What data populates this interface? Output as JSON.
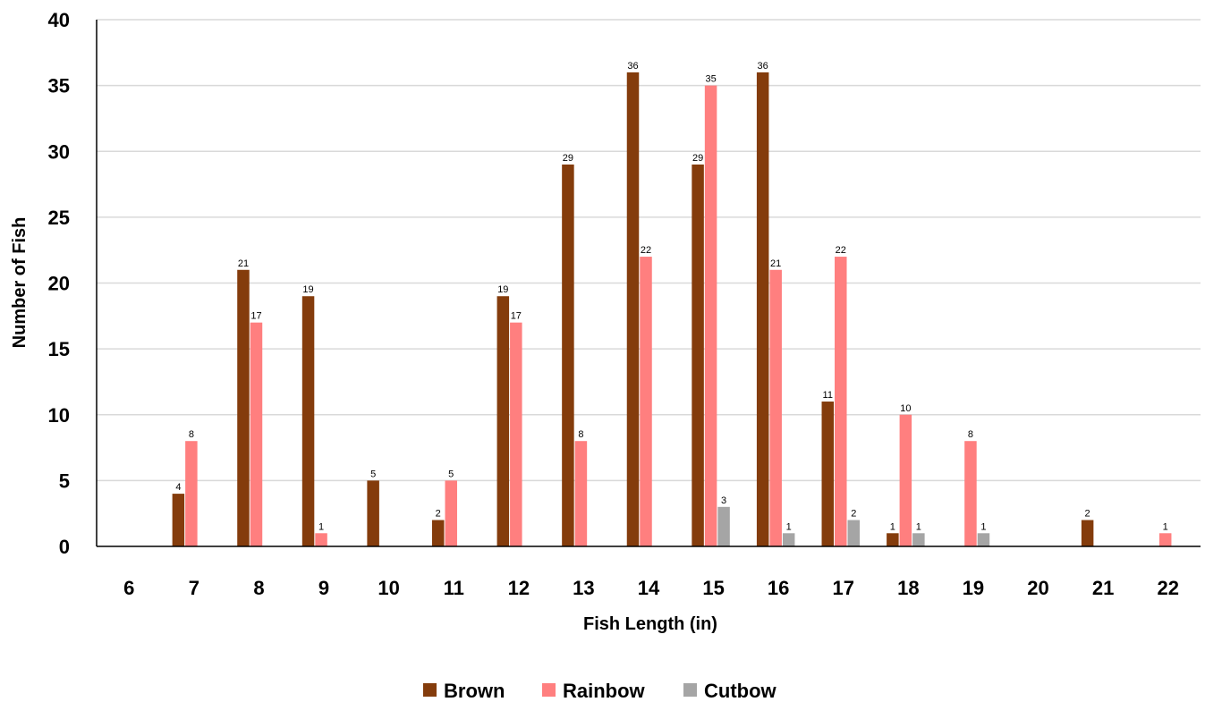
{
  "chart_data": {
    "type": "bar",
    "title": "",
    "xlabel": "Fish Length (in)",
    "ylabel": "Number of Fish",
    "categories": [
      "6",
      "7",
      "8",
      "9",
      "10",
      "11",
      "12",
      "13",
      "14",
      "15",
      "16",
      "17",
      "18",
      "19",
      "20",
      "21",
      "22"
    ],
    "ylim": [
      0,
      40
    ],
    "yticks": [
      "0",
      "5",
      "10",
      "15",
      "20",
      "25",
      "30",
      "35",
      "40"
    ],
    "grid": true,
    "legend_position": "bottom",
    "series": [
      {
        "name": "Brown",
        "color": "#843C0C",
        "values": [
          null,
          4,
          21,
          19,
          5,
          2,
          19,
          29,
          36,
          29,
          36,
          11,
          1,
          null,
          null,
          2,
          null
        ]
      },
      {
        "name": "Rainbow",
        "color": "#FF7F7F",
        "values": [
          null,
          8,
          17,
          1,
          null,
          5,
          17,
          8,
          22,
          35,
          21,
          22,
          10,
          8,
          null,
          null,
          1
        ]
      },
      {
        "name": "Cutbow",
        "color": "#A5A5A5",
        "values": [
          null,
          null,
          null,
          null,
          null,
          null,
          null,
          null,
          null,
          3,
          1,
          2,
          1,
          1,
          null,
          null,
          null
        ]
      }
    ]
  }
}
